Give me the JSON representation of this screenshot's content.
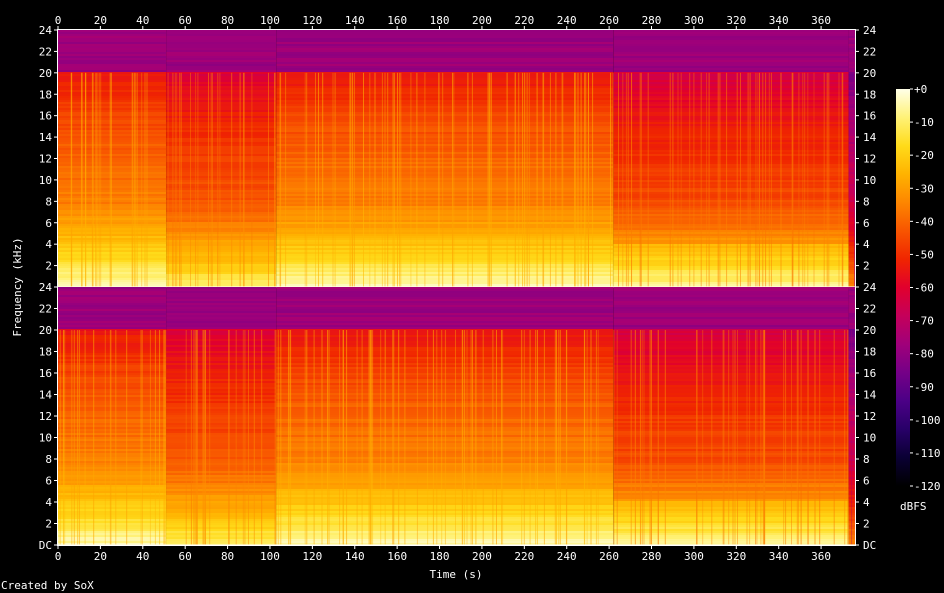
{
  "footer": {
    "credit": "Created by SoX"
  },
  "chart_data": {
    "type": "heatmap",
    "subtype": "spectrogram",
    "title": "",
    "xlabel": "Time (s)",
    "ylabel": "Frequency (kHz)",
    "xlim": [
      0,
      376
    ],
    "x_ticks": [
      "0",
      "20",
      "40",
      "60",
      "80",
      "100",
      "120",
      "140",
      "160",
      "180",
      "200",
      "220",
      "240",
      "260",
      "280",
      "300",
      "320",
      "340",
      "360"
    ],
    "y_ticks_top": [
      "2",
      "4",
      "6",
      "8",
      "10",
      "12",
      "14",
      "16",
      "18",
      "20",
      "22",
      "24"
    ],
    "y_ticks_bottom": [
      "DC",
      "2",
      "4",
      "6",
      "8",
      "10",
      "12",
      "14",
      "16",
      "18",
      "20",
      "22",
      "24"
    ],
    "ylim_khz": [
      0,
      24
    ],
    "channels": [
      "top",
      "bottom"
    ],
    "colorbar": {
      "label": "dBFS",
      "range": [
        -120,
        0
      ],
      "ticks": [
        "+0",
        "-10",
        "-20",
        "-30",
        "-40",
        "-50",
        "-60",
        "-70",
        "-80",
        "-90",
        "-100",
        "-110",
        "-120"
      ],
      "colors": [
        "#000000",
        "#0a0033",
        "#280068",
        "#4b0086",
        "#750087",
        "#a0007a",
        "#c5005a",
        "#e1002d",
        "#f02500",
        "#f85500",
        "#fd8600",
        "#ffb300",
        "#ffdb1a",
        "#fff278",
        "#ffffe8"
      ]
    },
    "segments": [
      {
        "start": 0,
        "end": 51,
        "lowpass_khz": 20,
        "level": "loud"
      },
      {
        "start": 51,
        "end": 103,
        "lowpass_khz": 20,
        "level": "medium"
      },
      {
        "start": 103,
        "end": 262,
        "lowpass_khz": 20,
        "level": "loud"
      },
      {
        "start": 262,
        "end": 373,
        "lowpass_khz": 20,
        "level": "quiet"
      },
      {
        "start": 373,
        "end": 376,
        "lowpass_khz": 20,
        "level": "fade"
      }
    ],
    "band_levels_db": {
      "above_cutoff": -78,
      "profile": [
        {
          "f": 0,
          "db": -4
        },
        {
          "f": 1,
          "db": -8
        },
        {
          "f": 2,
          "db": -14
        },
        {
          "f": 4,
          "db": -22
        },
        {
          "f": 6,
          "db": -30
        },
        {
          "f": 8,
          "db": -36
        },
        {
          "f": 12,
          "db": -40
        },
        {
          "f": 16,
          "db": -46
        },
        {
          "f": 20,
          "db": -55
        }
      ]
    }
  }
}
